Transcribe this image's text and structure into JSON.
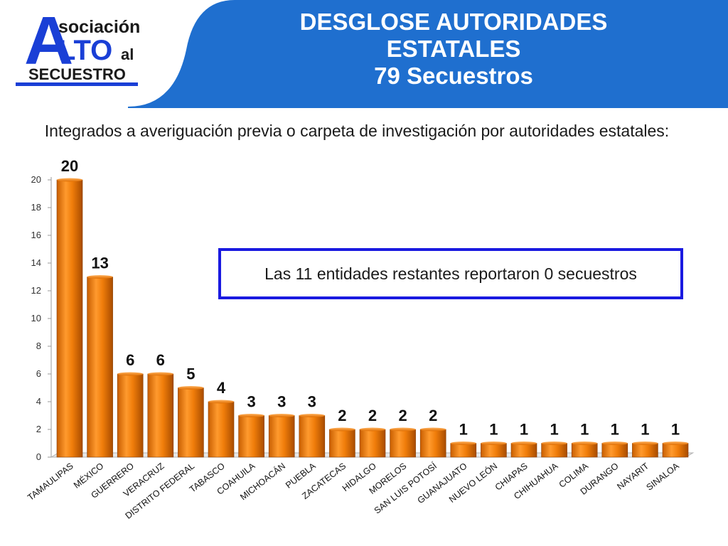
{
  "logo": {
    "line1_big": "A",
    "line1_rest": "sociación",
    "line2_big": "LTO",
    "line2_small": "al",
    "line3": "SECUESTRO",
    "colors": {
      "blue": "#1a3fd6",
      "dark": "#1a1a1a"
    }
  },
  "header": {
    "title_line1": "DESGLOSE AUTORIDADES",
    "title_line2": "ESTATALES",
    "title_line3": "79 Secuestros",
    "banner_color": "#1f6fcf"
  },
  "subtitle": "Integrados a averiguación previa o carpeta de investigación por autoridades estatales:",
  "note": "Las 11 entidades restantes reportaron 0 secuestros",
  "chart_data": {
    "type": "bar",
    "categories": [
      "TAMAULIPAS",
      "MÉXICO",
      "GUERRERO",
      "VERACRUZ",
      "DISTRITO FEDERAL",
      "TABASCO",
      "COAHUILA",
      "MICHOACÁN",
      "PUEBLA",
      "ZACATECAS",
      "HIDALGO",
      "MORELOS",
      "SAN LUIS POTOSÍ",
      "GUANAJUATO",
      "NUEVO LEÓN",
      "CHIAPAS",
      "CHIHUAHUA",
      "COLIMA",
      "DURANGO",
      "NAYARIT",
      "SINALOA"
    ],
    "values": [
      20,
      13,
      6,
      6,
      5,
      4,
      3,
      3,
      3,
      2,
      2,
      2,
      2,
      1,
      1,
      1,
      1,
      1,
      1,
      1,
      1
    ],
    "ylim": [
      0,
      20
    ],
    "yticks": [
      0,
      2,
      4,
      6,
      8,
      10,
      12,
      14,
      16,
      18,
      20
    ],
    "bar_color": "#f07d0a",
    "grid": false,
    "data_labels": true
  }
}
